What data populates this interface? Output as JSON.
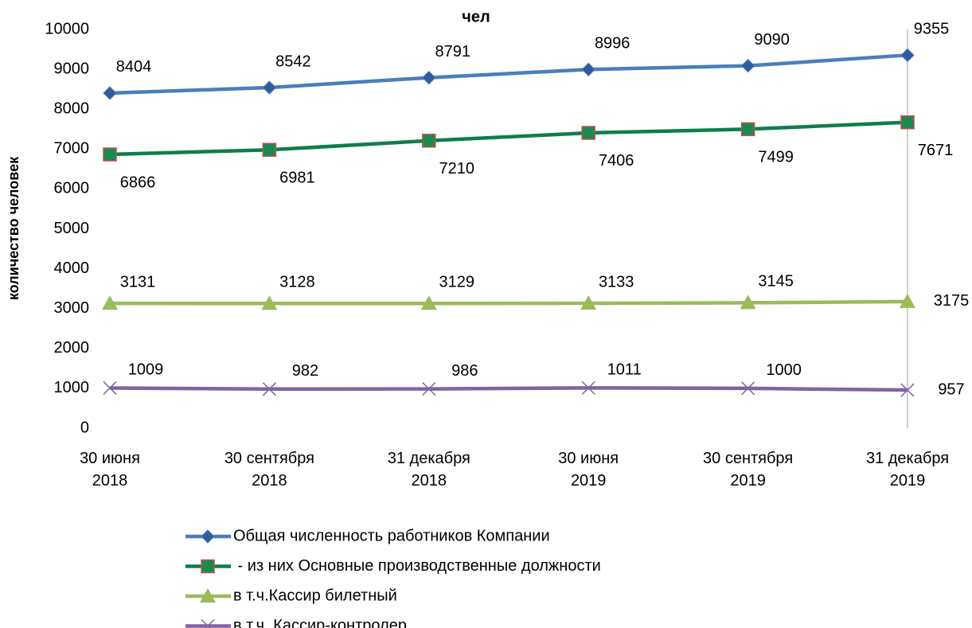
{
  "chart_data": {
    "type": "line",
    "title": "чел",
    "y_label": "количество человек",
    "categories": [
      "30 июня\n2018",
      "30 сентября\n2018",
      "31 декабря\n2018",
      "30 июня\n2019",
      "30 сентября\n2019",
      "31 декабря\n2019"
    ],
    "ylim": [
      0,
      10000
    ],
    "yticks": [
      0,
      1000,
      2000,
      3000,
      4000,
      5000,
      6000,
      7000,
      8000,
      9000,
      10000
    ],
    "series": [
      {
        "name": "Общая численность работников Компании",
        "color": "#4a7ebb",
        "marker": "diamond",
        "values": [
          8404,
          8542,
          8791,
          8996,
          9090,
          9355
        ]
      },
      {
        "name": " - из них Основные производственные должности",
        "color": "#0f7d4b",
        "marker": "square",
        "values": [
          6866,
          6981,
          7210,
          7406,
          7499,
          7671
        ]
      },
      {
        "name": "в т.ч.Кассир билетный",
        "color": "#9bbb59",
        "marker": "triangle",
        "values": [
          3131,
          3128,
          3129,
          3133,
          3145,
          3175
        ]
      },
      {
        "name": "в т.ч. Кассир-контролер",
        "color": "#8064a2",
        "marker": "x",
        "values": [
          1009,
          982,
          986,
          1011,
          1000,
          957
        ]
      }
    ]
  }
}
